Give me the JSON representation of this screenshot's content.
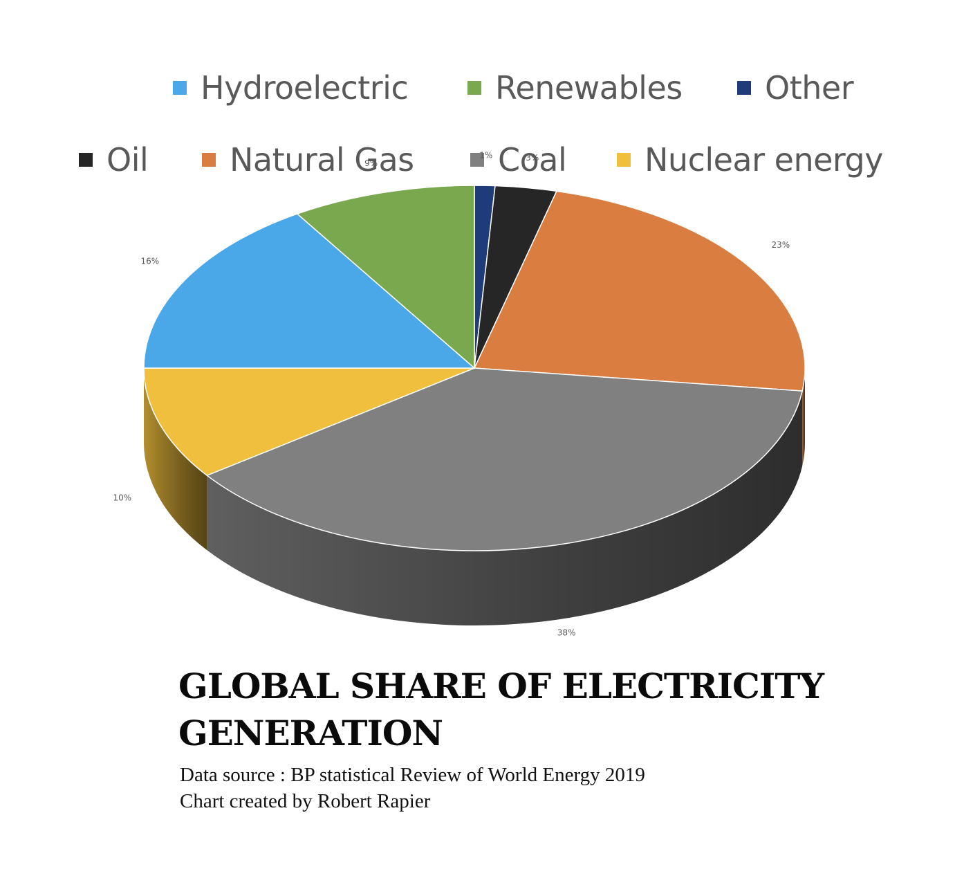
{
  "chart_data": {
    "type": "pie",
    "title": "GLOBAL SHARE OF ELECTRICITY GENERATION",
    "subtitle_lines": [
      "Data source : BP statistical Review of World Energy 2019",
      "Chart created by Robert Rapier"
    ],
    "legend": {
      "placement": "top",
      "rows": [
        [
          "Hydroelectric",
          "Renewables",
          "Other"
        ],
        [
          "Oil",
          "Natural Gas",
          "Coal",
          "Nuclear energy"
        ]
      ]
    },
    "slices": [
      {
        "name": "Other",
        "value": 1,
        "label": "1%",
        "color": "#1f3c7a"
      },
      {
        "name": "Oil",
        "value": 3,
        "label": "3%",
        "color": "#262626"
      },
      {
        "name": "Natural Gas",
        "value": 23,
        "label": "23%",
        "color": "#d97d40"
      },
      {
        "name": "Coal",
        "value": 38,
        "label": "38%",
        "color": "#808080"
      },
      {
        "name": "Nuclear energy",
        "value": 10,
        "label": "10%",
        "color": "#f0bf3e"
      },
      {
        "name": "Hydroelectric",
        "value": 16,
        "label": "16%",
        "color": "#4ba8e8"
      },
      {
        "name": "Renewables",
        "value": 9,
        "label": "9%",
        "color": "#79a84f"
      }
    ],
    "legend_colors": {
      "Hydroelectric": "#4ba8e8",
      "Renewables": "#79a84f",
      "Other": "#1f3c7a",
      "Oil": "#262626",
      "Natural Gas": "#d97d40",
      "Coal": "#808080",
      "Nuclear energy": "#f0bf3e"
    }
  }
}
